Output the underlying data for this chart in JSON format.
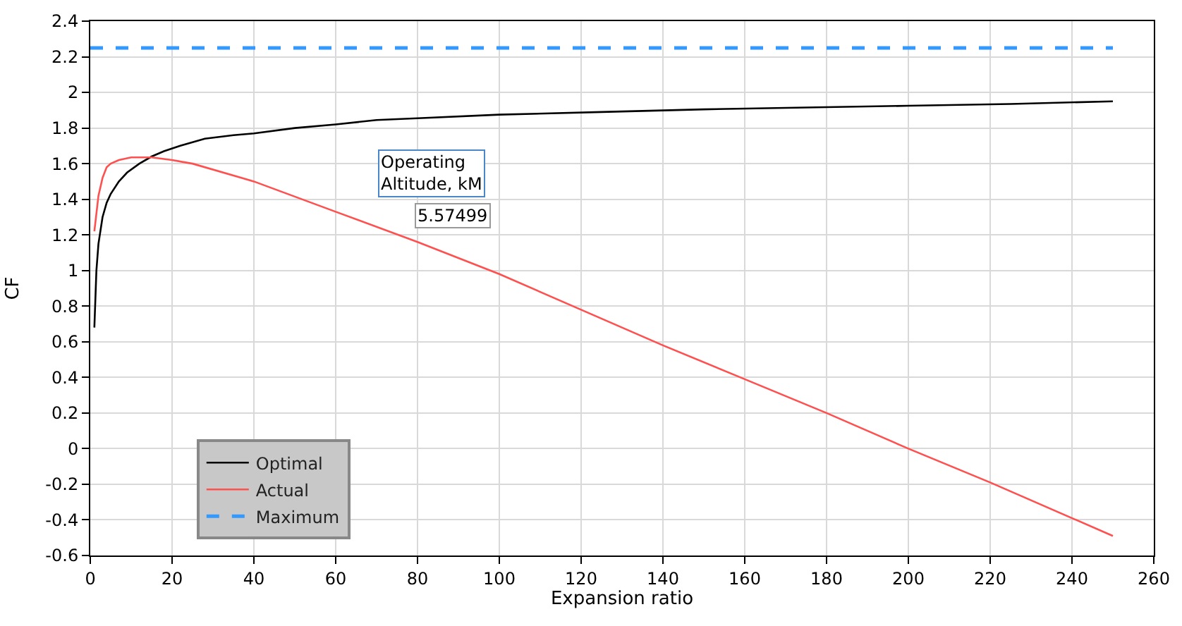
{
  "chart_data": {
    "type": "line",
    "xlabel": "Expansion ratio",
    "ylabel": "CF",
    "xlim": [
      0,
      260
    ],
    "xticks": [
      0,
      20,
      40,
      60,
      80,
      100,
      120,
      140,
      160,
      180,
      200,
      220,
      240,
      260
    ],
    "ylim": [
      -0.6,
      2.4
    ],
    "yticks": [
      -0.6,
      -0.4,
      -0.2,
      0,
      0.2,
      0.4,
      0.6,
      0.8,
      1,
      1.2,
      1.4,
      1.6,
      1.8,
      2,
      2.2,
      2.4
    ],
    "grid": true,
    "legend": "bottom left",
    "marker": "none",
    "series": [
      {
        "name": "Optimal",
        "color": "#000000",
        "line_style": "solid",
        "x": [
          1,
          1.5,
          2,
          3,
          4,
          5,
          7,
          9,
          12,
          15,
          18,
          22,
          28,
          35,
          40,
          50,
          60,
          70,
          80,
          100,
          125,
          150,
          175,
          200,
          225,
          250
        ],
        "values": [
          0.68,
          1.0,
          1.15,
          1.3,
          1.38,
          1.43,
          1.5,
          1.55,
          1.6,
          1.64,
          1.67,
          1.7,
          1.74,
          1.76,
          1.77,
          1.8,
          1.82,
          1.845,
          1.855,
          1.875,
          1.89,
          1.905,
          1.915,
          1.925,
          1.935,
          1.95
        ]
      },
      {
        "name": "Actual",
        "color": "#ff5050",
        "line_style": "solid",
        "x": [
          1,
          2,
          3,
          4,
          5,
          7,
          10,
          15,
          20,
          25,
          40,
          60,
          80,
          100,
          120,
          140,
          160,
          180,
          200,
          220,
          250
        ],
        "values": [
          1.22,
          1.42,
          1.52,
          1.58,
          1.6,
          1.62,
          1.635,
          1.635,
          1.62,
          1.6,
          1.5,
          1.33,
          1.16,
          0.98,
          0.78,
          0.58,
          0.39,
          0.2,
          0.0,
          -0.19,
          -0.49
        ]
      },
      {
        "name": "Maximum",
        "color": "#3399ff",
        "line_style": "dashed",
        "x": [
          0,
          250
        ],
        "values": [
          2.25,
          2.25
        ]
      }
    ],
    "annotations": [
      "Operating\nAltitude, kM",
      "5.57499"
    ]
  }
}
